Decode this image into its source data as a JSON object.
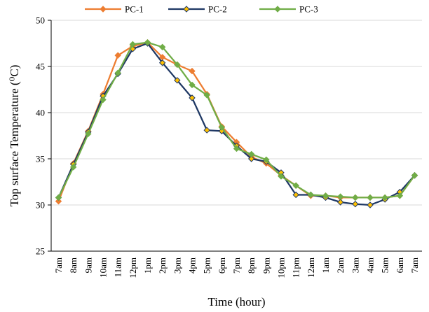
{
  "chart_data": {
    "type": "line",
    "title": "",
    "xlabel": "Time (hour)",
    "ylabel": "Top surface Temperature (⁰C)",
    "ylim": [
      25,
      50
    ],
    "yticks": [
      25,
      30,
      35,
      40,
      45,
      50
    ],
    "grid": "horizontal",
    "legend": "top-center",
    "categories": [
      "7am",
      "8am",
      "9am",
      "10am",
      "11am",
      "12pm",
      "1pm",
      "2pm",
      "3pm",
      "4pm",
      "5pm",
      "6pm",
      "7pm",
      "8pm",
      "9pm",
      "10pm",
      "11pm",
      "12am",
      "1am",
      "2am",
      "3am",
      "4am",
      "5am",
      "6am",
      "7am"
    ],
    "series": [
      {
        "name": "PC-1",
        "color": "#ED7D31",
        "marker": "diamond",
        "values": [
          30.4,
          34.5,
          38.0,
          42.0,
          46.2,
          47.2,
          47.6,
          46.0,
          45.2,
          44.5,
          42.0,
          38.5,
          36.8,
          35.2,
          34.5,
          33.2,
          32.1,
          31.0,
          31.0,
          30.8,
          30.8,
          30.8,
          30.8,
          31.0,
          33.2
        ]
      },
      {
        "name": "PC-2",
        "color": "#1F3864",
        "marker": "diamond",
        "values": [
          30.8,
          34.4,
          37.9,
          41.8,
          44.2,
          46.9,
          47.5,
          45.4,
          43.5,
          41.6,
          38.1,
          38.0,
          36.4,
          35.0,
          34.7,
          33.5,
          31.1,
          31.1,
          30.8,
          30.3,
          30.1,
          30.0,
          30.6,
          31.4,
          33.2
        ]
      },
      {
        "name": "PC-3",
        "color": "#70AD47",
        "marker": "diamond",
        "values": [
          30.8,
          34.1,
          37.7,
          41.4,
          44.3,
          47.4,
          47.6,
          47.1,
          45.2,
          43.0,
          41.9,
          38.4,
          36.1,
          35.5,
          34.9,
          33.1,
          32.1,
          31.1,
          31.0,
          30.9,
          30.8,
          30.8,
          30.8,
          31.0,
          33.2
        ]
      }
    ]
  }
}
